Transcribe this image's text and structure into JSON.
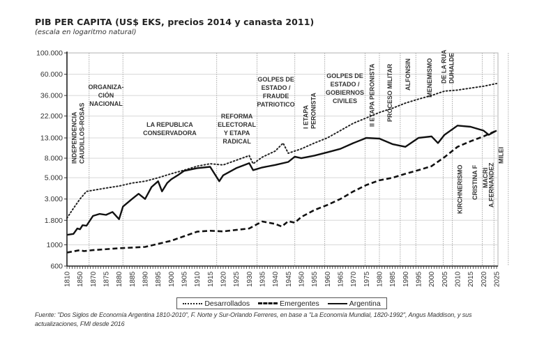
{
  "header": {
    "title": "PIB PER CAPITA (US$ EKS, precios 2014 y canasta 2011)",
    "subtitle": "(escala en logaritmo natural)"
  },
  "legend": {
    "items": [
      {
        "label": "Desarrollados",
        "style": "dotted"
      },
      {
        "label": "Emergentes",
        "style": "dashed"
      },
      {
        "label": "Argentina",
        "style": "solid"
      }
    ]
  },
  "source": "Fuente: \"Dos Siglos de Economía Argentina 1810-2010\", F. Norte y Sur-Orlando Ferreres, en base a \"La Economía Mundial, 1820-1992\", Angus Maddison, y sus actualizaciones, FMI desde 2016",
  "chart_data": {
    "type": "line",
    "title": "PIB PER CAPITA (US$ EKS, precios 2014 y canasta 2011)",
    "subtitle": "(escala en logaritmo natural)",
    "xlabel": "",
    "ylabel": "",
    "yscale": "log",
    "ylim": [
      600,
      100000
    ],
    "grid": true,
    "legend_position": "bottom",
    "y_ticks": [
      {
        "value": 100000,
        "label": "100.000"
      },
      {
        "value": 60000,
        "label": "60.000"
      },
      {
        "value": 36000,
        "label": "36.000"
      },
      {
        "value": 22000,
        "label": "22.000"
      },
      {
        "value": 13000,
        "label": "13.000"
      },
      {
        "value": 8000,
        "label": "8.000"
      },
      {
        "value": 5000,
        "label": "5.000"
      },
      {
        "value": 3000,
        "label": "3.000"
      },
      {
        "value": 1800,
        "label": "1.800"
      },
      {
        "value": 1000,
        "label": "1000"
      },
      {
        "value": 600,
        "label": "600"
      }
    ],
    "categories": [
      "1810",
      "1850",
      "1870",
      "1875",
      "1880",
      "1885",
      "1890",
      "1895",
      "1900",
      "1905",
      "1910",
      "1915",
      "1920",
      "1925",
      "1930",
      "1935",
      "1940",
      "1945",
      "1950",
      "1955",
      "1960",
      "1965",
      "1970",
      "1975",
      "1980",
      "1985",
      "1990",
      "1995",
      "2000",
      "2005",
      "2010",
      "2015",
      "2020",
      "2025"
    ],
    "x_note": "Series points are given as [category_index, value]; fractional indices fall between labeled years.",
    "series": [
      {
        "name": "Desarrollados",
        "style": "dotted",
        "points": [
          [
            0,
            1900
          ],
          [
            0.5,
            2400
          ],
          [
            1,
            3000
          ],
          [
            1.5,
            3600
          ],
          [
            2,
            3700
          ],
          [
            3,
            3900
          ],
          [
            4,
            4100
          ],
          [
            5,
            4400
          ],
          [
            6,
            4600
          ],
          [
            7,
            5000
          ],
          [
            8,
            5500
          ],
          [
            9,
            6000
          ],
          [
            10,
            6600
          ],
          [
            11,
            7000
          ],
          [
            12,
            6800
          ],
          [
            13,
            7600
          ],
          [
            14,
            8500
          ],
          [
            14.3,
            7000
          ],
          [
            15,
            8200
          ],
          [
            16,
            9500
          ],
          [
            16.6,
            11500
          ],
          [
            17,
            9000
          ],
          [
            18,
            10000
          ],
          [
            19,
            11500
          ],
          [
            20,
            13000
          ],
          [
            21,
            15500
          ],
          [
            22,
            18500
          ],
          [
            23,
            21000
          ],
          [
            24,
            24000
          ],
          [
            25,
            26500
          ],
          [
            26,
            30000
          ],
          [
            27,
            33000
          ],
          [
            28,
            36000
          ],
          [
            29,
            40000
          ],
          [
            30,
            41000
          ],
          [
            31,
            43000
          ],
          [
            32,
            45000
          ],
          [
            33,
            48000
          ]
        ]
      },
      {
        "name": "Emergentes",
        "style": "dashed",
        "points": [
          [
            0,
            830
          ],
          [
            1,
            880
          ],
          [
            1.3,
            860
          ],
          [
            2,
            880
          ],
          [
            4,
            920
          ],
          [
            6,
            950
          ],
          [
            8,
            1100
          ],
          [
            9,
            1230
          ],
          [
            10,
            1370
          ],
          [
            11,
            1400
          ],
          [
            12,
            1380
          ],
          [
            13,
            1430
          ],
          [
            14,
            1480
          ],
          [
            15,
            1750
          ],
          [
            16,
            1650
          ],
          [
            16.5,
            1550
          ],
          [
            17,
            1760
          ],
          [
            17.5,
            1700
          ],
          [
            18,
            1950
          ],
          [
            19,
            2300
          ],
          [
            20,
            2600
          ],
          [
            21,
            3000
          ],
          [
            22,
            3600
          ],
          [
            23,
            4200
          ],
          [
            24,
            4700
          ],
          [
            25,
            5000
          ],
          [
            26,
            5500
          ],
          [
            27,
            6000
          ],
          [
            28,
            6600
          ],
          [
            29,
            8200
          ],
          [
            30,
            10500
          ],
          [
            31,
            12000
          ],
          [
            32,
            13500
          ],
          [
            33,
            15500
          ]
        ]
      },
      {
        "name": "Argentina",
        "style": "solid",
        "points": [
          [
            0,
            1270
          ],
          [
            0.5,
            1300
          ],
          [
            0.8,
            1480
          ],
          [
            1,
            1450
          ],
          [
            1.2,
            1600
          ],
          [
            1.5,
            1580
          ],
          [
            2,
            2000
          ],
          [
            2.5,
            2100
          ],
          [
            3,
            2050
          ],
          [
            3.5,
            2200
          ],
          [
            4,
            1850
          ],
          [
            4.3,
            2500
          ],
          [
            5,
            3000
          ],
          [
            5.5,
            3400
          ],
          [
            6,
            3000
          ],
          [
            6.5,
            4000
          ],
          [
            7,
            4600
          ],
          [
            7.3,
            3600
          ],
          [
            7.7,
            4400
          ],
          [
            8,
            4800
          ],
          [
            8.5,
            5300
          ],
          [
            9,
            5900
          ],
          [
            10,
            6300
          ],
          [
            11,
            6500
          ],
          [
            11.7,
            4600
          ],
          [
            12,
            5300
          ],
          [
            13,
            6300
          ],
          [
            14,
            7100
          ],
          [
            14.3,
            6000
          ],
          [
            15,
            6400
          ],
          [
            16,
            6800
          ],
          [
            17,
            7300
          ],
          [
            17.5,
            8300
          ],
          [
            18,
            8000
          ],
          [
            19,
            8500
          ],
          [
            20,
            9200
          ],
          [
            21,
            10000
          ],
          [
            22,
            11500
          ],
          [
            23,
            13000
          ],
          [
            24,
            12800
          ],
          [
            25,
            11200
          ],
          [
            26,
            10500
          ],
          [
            27,
            13000
          ],
          [
            28,
            13500
          ],
          [
            28.5,
            11500
          ],
          [
            29,
            14000
          ],
          [
            30,
            17500
          ],
          [
            31,
            17000
          ],
          [
            32,
            15500
          ],
          [
            32.4,
            14000
          ],
          [
            33,
            15500
          ]
        ]
      }
    ],
    "periods": [
      {
        "label": [
          "INDEPENDENCIA",
          "CAUDILLOS-ROSAS"
        ],
        "orientation": "vertical",
        "start": 0,
        "end": 1.7
      },
      {
        "label": [
          "ORGANIZA-",
          "CIÓN",
          "NACIONAL"
        ],
        "orientation": "horizontal",
        "start": 1.7,
        "end": 4.3
      },
      {
        "label": [
          "LA REPUBLICA",
          "CONSERVADORA"
        ],
        "orientation": "horizontal",
        "start": 4.3,
        "end": 11.5
      },
      {
        "label": [
          "REFORMA",
          "ELECTORAL",
          "Y ETAPA",
          "RADICAL"
        ],
        "orientation": "horizontal",
        "start": 11.5,
        "end": 14.6
      },
      {
        "label": [
          "GOLPES DE",
          "ESTADO /",
          "FRAUDE",
          "PATRIOTICO"
        ],
        "orientation": "horizontal",
        "start": 14.6,
        "end": 17.5
      },
      {
        "label": [
          "I ETAPA",
          "PERONISTA"
        ],
        "orientation": "vertical",
        "start": 17.5,
        "end": 19.8
      },
      {
        "label": [
          "GOLPES DE",
          "ESTADO /",
          "GOBIERNOS",
          "CIVILES"
        ],
        "orientation": "horizontal",
        "start": 19.8,
        "end": 22.9
      },
      {
        "label": [
          "II ETAPA PERONISTA"
        ],
        "orientation": "vertical",
        "start": 22.9,
        "end": 24.0
      },
      {
        "label": [
          "PROCESO MILITAR"
        ],
        "orientation": "vertical",
        "start": 24.0,
        "end": 25.6
      },
      {
        "label": [
          "ALFONSIN"
        ],
        "orientation": "vertical",
        "start": 25.6,
        "end": 26.8
      },
      {
        "label": [
          "MENEMISMO"
        ],
        "orientation": "vertical",
        "start": 26.8,
        "end": 28.9
      },
      {
        "label": [
          "DE LA RUA",
          "DUHALDE"
        ],
        "orientation": "vertical",
        "start": 28.9,
        "end": 29.6
      },
      {
        "label": [
          "KIRCHNERISMO"
        ],
        "orientation": "vertical",
        "start": 29.6,
        "end": 30.8
      },
      {
        "label": [
          "CRISTINA F"
        ],
        "orientation": "vertical",
        "start": 30.8,
        "end": 31.9
      },
      {
        "label": [
          "MACRI"
        ],
        "orientation": "vertical",
        "start": 31.9,
        "end": 32.4
      },
      {
        "label": [
          "A.FERNANDEZ"
        ],
        "orientation": "vertical",
        "start": 32.4,
        "end": 32.8
      },
      {
        "label": [
          "MILEI"
        ],
        "orientation": "vertical",
        "start": 32.8,
        "end": 33.9
      }
    ],
    "period_boundaries": [
      1.7,
      4.3,
      11.5,
      14.6,
      17.5,
      19.8,
      22.9,
      24.0,
      25.6,
      26.8,
      28.9,
      29.6,
      31.9,
      32.8,
      33.9
    ]
  }
}
